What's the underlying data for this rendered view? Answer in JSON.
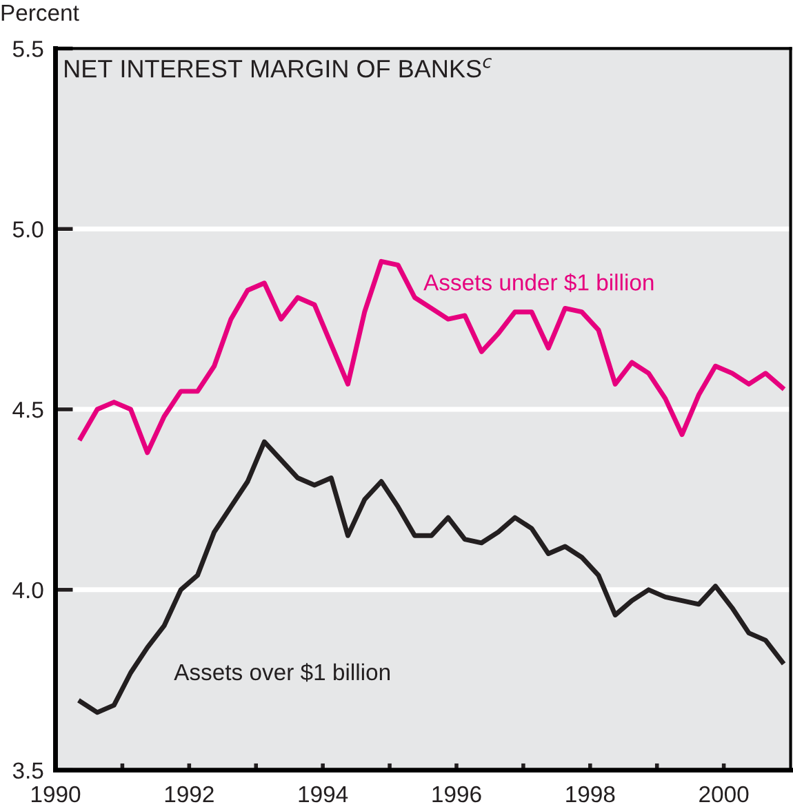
{
  "chart_data": {
    "type": "line",
    "title": "NET INTEREST MARGIN OF BANKS$^{c}$",
    "ylabel": "Percent",
    "x": [
      1990.375,
      1990.625,
      1990.875,
      1991.125,
      1991.375,
      1991.625,
      1991.875,
      1992.125,
      1992.375,
      1992.625,
      1992.875,
      1993.125,
      1993.375,
      1993.625,
      1993.875,
      1994.125,
      1994.375,
      1994.625,
      1994.875,
      1995.125,
      1995.375,
      1995.625,
      1995.875,
      1996.125,
      1996.375,
      1996.625,
      1996.875,
      1997.125,
      1997.375,
      1997.625,
      1997.875,
      1998.125,
      1998.375,
      1998.625,
      1998.875,
      1999.125,
      1999.375,
      1999.625,
      1999.875,
      2000.125,
      2000.375,
      2000.625,
      2000.875
    ],
    "series": [
      {
        "name": "Assets under $1 billion",
        "color": "#e6007e",
        "values": [
          4.42,
          4.5,
          4.52,
          4.5,
          4.38,
          4.48,
          4.55,
          4.55,
          4.62,
          4.75,
          4.83,
          4.85,
          4.75,
          4.81,
          4.79,
          4.68,
          4.57,
          4.77,
          4.91,
          4.9,
          4.81,
          4.78,
          4.75,
          4.76,
          4.66,
          4.71,
          4.77,
          4.77,
          4.67,
          4.78,
          4.77,
          4.72,
          4.57,
          4.63,
          4.6,
          4.53,
          4.43,
          4.54,
          4.62,
          4.6,
          4.57,
          4.6,
          4.56
        ]
      },
      {
        "name": "Assets over $1 billion",
        "color": "#231f20",
        "values": [
          3.69,
          3.66,
          3.68,
          3.77,
          3.84,
          3.9,
          4.0,
          4.04,
          4.16,
          4.23,
          4.3,
          4.41,
          4.36,
          4.31,
          4.29,
          4.31,
          4.15,
          4.25,
          4.3,
          4.23,
          4.15,
          4.15,
          4.2,
          4.14,
          4.13,
          4.16,
          4.2,
          4.17,
          4.1,
          4.12,
          4.09,
          4.04,
          3.93,
          3.97,
          4.0,
          3.98,
          3.97,
          3.96,
          4.01,
          3.95,
          3.88,
          3.86,
          3.8
        ]
      }
    ],
    "xlim": [
      1990,
      2001
    ],
    "xticks": [
      1990,
      {
        "value": 1991,
        "label": null
      },
      1992,
      {
        "value": 1993,
        "label": null
      },
      1994,
      {
        "value": 1995,
        "label": null
      },
      1996,
      {
        "value": 1997,
        "label": null
      },
      1998,
      {
        "value": 1999,
        "label": null
      },
      2000
    ],
    "ylim": [
      3.5,
      5.5
    ],
    "yticks": [
      3.5,
      {
        "value": 4,
        "label": "4.0"
      },
      4.5,
      {
        "value": 5,
        "label": "5.0"
      },
      5.5
    ],
    "grid": "y",
    "legend": false,
    "marker": "none",
    "line_style": "solid"
  }
}
